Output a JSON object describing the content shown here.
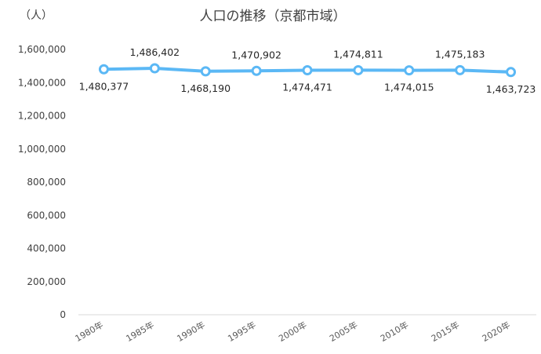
{
  "chart_data": {
    "type": "line",
    "title": "人口の推移（京都市域）",
    "ylabel": "（人）",
    "xlabel": "",
    "categories": [
      "1980年",
      "1985年",
      "1990年",
      "1995年",
      "2000年",
      "2005年",
      "2010年",
      "2015年",
      "2020年"
    ],
    "series": [
      {
        "values": [
          1480377,
          1486402,
          1468190,
          1470902,
          1474471,
          1474811,
          1474015,
          1475183,
          1463723
        ],
        "labels": [
          "1,480,377",
          "1,486,402",
          "1,468,190",
          "1,470,902",
          "1,474,471",
          "1,474,811",
          "1,474,015",
          "1,475,183",
          "1,463,723"
        ],
        "color": "#5bb8f5"
      }
    ],
    "ylim": [
      0,
      1600000
    ],
    "yticks": [
      "0",
      "200,000",
      "400,000",
      "600,000",
      "800,000",
      "1,000,000",
      "1,200,000",
      "1,400,000",
      "1,600,000"
    ],
    "grid": false,
    "legend": "none"
  }
}
